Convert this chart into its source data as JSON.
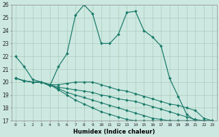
{
  "title": "",
  "xlabel": "Humidex (Indice chaleur)",
  "bg_color": "#cce8e0",
  "grid_color": "#aaccbb",
  "line_color": "#1a7a6a",
  "xlim": [
    -0.5,
    23.5
  ],
  "ylim": [
    17,
    26
  ],
  "yticks": [
    17,
    18,
    19,
    20,
    21,
    22,
    23,
    24,
    25,
    26
  ],
  "xticks": [
    0,
    1,
    2,
    3,
    4,
    5,
    6,
    7,
    8,
    9,
    10,
    11,
    12,
    13,
    14,
    15,
    16,
    17,
    18,
    19,
    20,
    21,
    22,
    23
  ],
  "line1_x": [
    0,
    1,
    2,
    3,
    4,
    5,
    6,
    7,
    8,
    9,
    10,
    11,
    12,
    13,
    14,
    15,
    16,
    17,
    18,
    19,
    20,
    21,
    22,
    23
  ],
  "line1_y": [
    22,
    21.2,
    20.2,
    20.0,
    19.7,
    21.2,
    22.2,
    25.2,
    26.0,
    25.3,
    23.0,
    23.0,
    23.7,
    25.4,
    25.5,
    24.0,
    23.5,
    22.8,
    20.3,
    18.9,
    17.5,
    17.0,
    17.0,
    17.0
  ],
  "line2_x": [
    0,
    1,
    2,
    3,
    4,
    5,
    6,
    7,
    8,
    9,
    10,
    11,
    12,
    13,
    14,
    15,
    16,
    17,
    18,
    19,
    20,
    21,
    22,
    23
  ],
  "line2_y": [
    20.3,
    20.1,
    20.0,
    20.0,
    19.8,
    19.8,
    19.9,
    20.0,
    20.0,
    20.0,
    19.8,
    19.6,
    19.4,
    19.3,
    19.1,
    18.9,
    18.7,
    18.5,
    18.3,
    18.2,
    18.0,
    17.8,
    17.2,
    17.0
  ],
  "line3_x": [
    0,
    1,
    2,
    3,
    4,
    5,
    6,
    7,
    8,
    9,
    10,
    11,
    12,
    13,
    14,
    15,
    16,
    17,
    18,
    19,
    20,
    21,
    22,
    23
  ],
  "line3_y": [
    20.3,
    20.1,
    20.0,
    20.0,
    19.8,
    19.6,
    19.5,
    19.4,
    19.3,
    19.2,
    19.0,
    18.9,
    18.7,
    18.6,
    18.5,
    18.3,
    18.1,
    17.9,
    17.7,
    17.5,
    17.3,
    17.1,
    17.0,
    17.0
  ],
  "line4_x": [
    0,
    1,
    2,
    3,
    4,
    5,
    6,
    7,
    8,
    9,
    10,
    11,
    12,
    13,
    14,
    15,
    16,
    17,
    18,
    19,
    20,
    21,
    22,
    23
  ],
  "line4_y": [
    20.3,
    20.1,
    20.0,
    20.0,
    19.8,
    19.5,
    19.2,
    19.0,
    18.8,
    18.6,
    18.4,
    18.2,
    18.0,
    17.8,
    17.6,
    17.4,
    17.2,
    17.1,
    17.0,
    17.0,
    17.0,
    17.0,
    17.0,
    17.0
  ],
  "line5_x": [
    0,
    1,
    2,
    3,
    4,
    5,
    6,
    7,
    8,
    9,
    10,
    11,
    12,
    13,
    14,
    15,
    16,
    17,
    18,
    19,
    20,
    21,
    22,
    23
  ],
  "line5_y": [
    20.3,
    20.1,
    20.0,
    20.0,
    19.8,
    19.4,
    19.0,
    18.6,
    18.3,
    18.0,
    17.7,
    17.5,
    17.3,
    17.1,
    17.0,
    17.0,
    17.0,
    17.0,
    17.0,
    17.0,
    17.0,
    17.0,
    17.0,
    17.0
  ]
}
